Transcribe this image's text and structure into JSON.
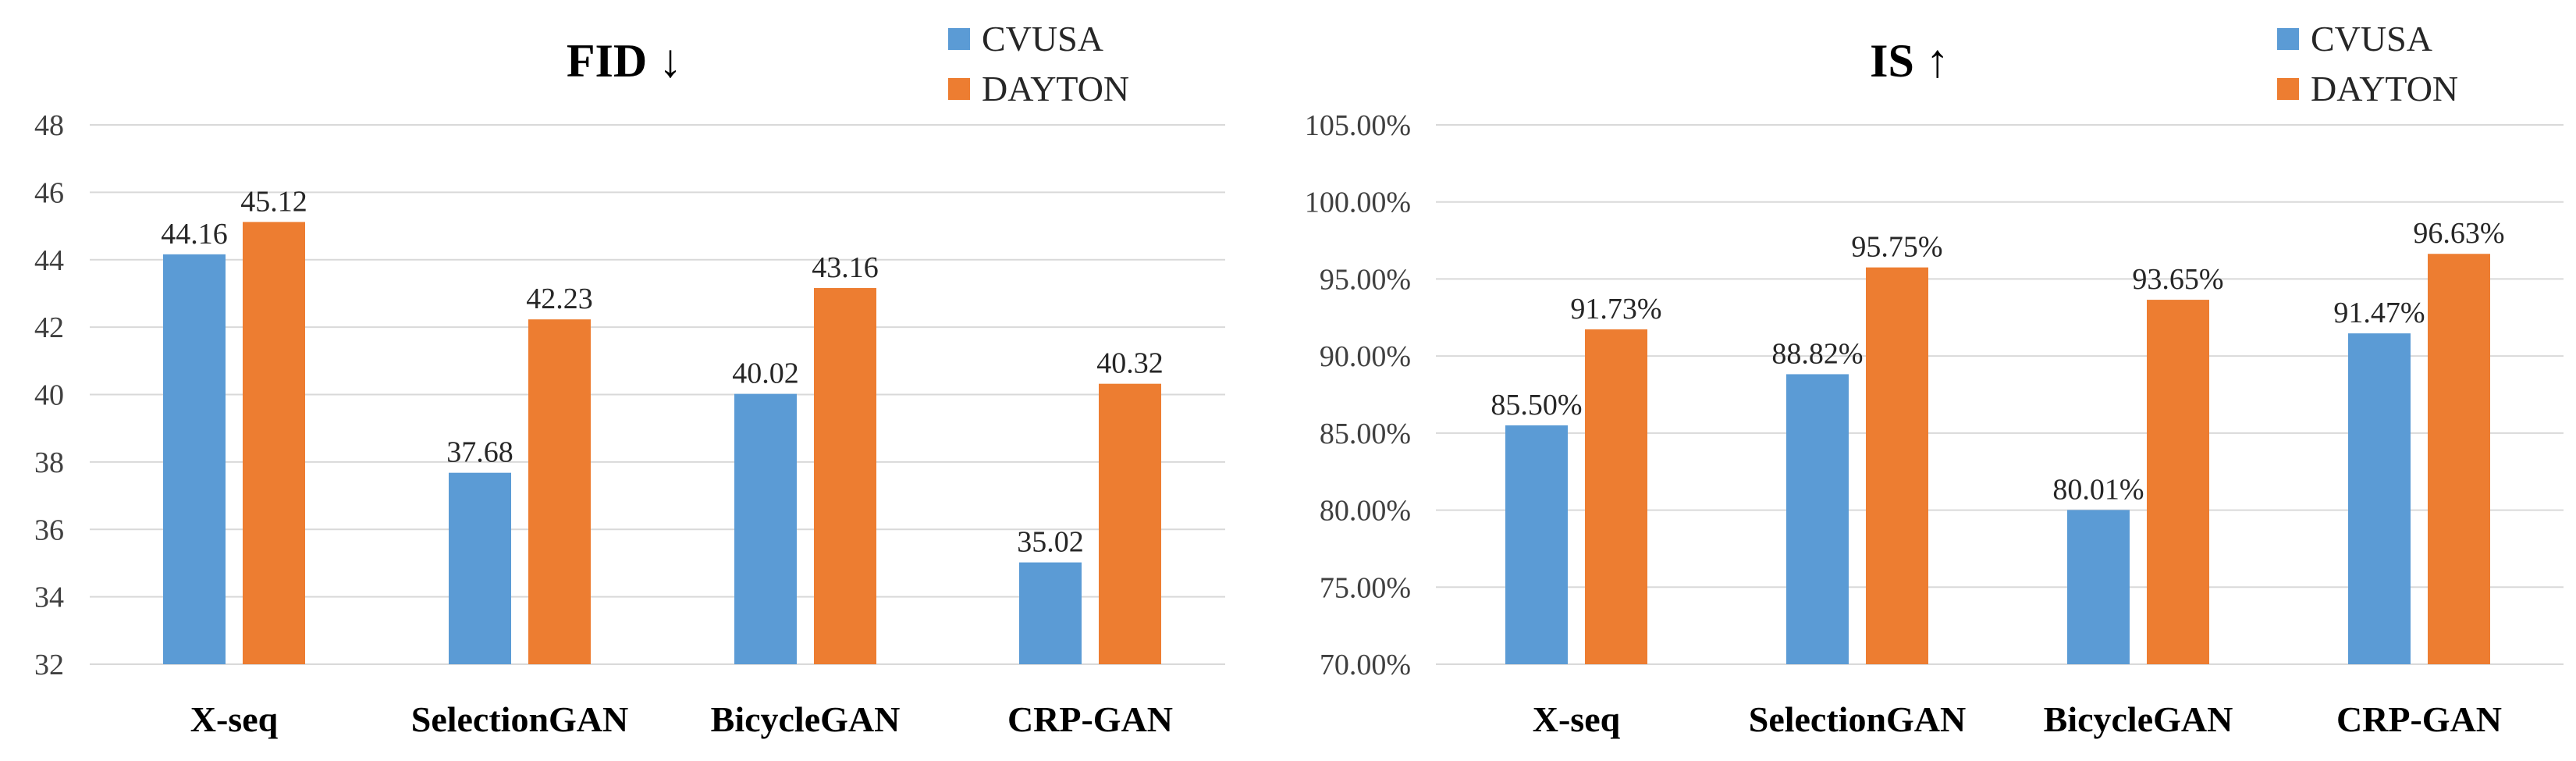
{
  "colors": {
    "CVUSA": "#5b9bd5",
    "DAYTON": "#ed7d31"
  },
  "chart_data": [
    {
      "type": "bar",
      "title": "FID ↓",
      "categories": [
        "X-seq",
        "SelectionGAN",
        "BicycleGAN",
        "CRP-GAN"
      ],
      "series": [
        {
          "name": "CVUSA",
          "values": [
            44.16,
            37.68,
            40.02,
            35.02
          ],
          "labels": [
            "44.16",
            "37.68",
            "40.02",
            "35.02"
          ]
        },
        {
          "name": "DAYTON",
          "values": [
            45.12,
            42.23,
            43.16,
            40.32
          ],
          "labels": [
            "45.12",
            "42.23",
            "43.16",
            "40.32"
          ]
        }
      ],
      "ylim": [
        32,
        48
      ],
      "yticks": [
        32,
        34,
        36,
        38,
        40,
        42,
        44,
        46,
        48
      ],
      "ytick_labels": [
        "32",
        "34",
        "36",
        "38",
        "40",
        "42",
        "44",
        "46",
        "48"
      ],
      "xlabel": "",
      "ylabel": "",
      "grid": true,
      "legend_position": "top-right"
    },
    {
      "type": "bar",
      "title": "IS ↑",
      "categories": [
        "X-seq",
        "SelectionGAN",
        "BicycleGAN",
        "CRP-GAN"
      ],
      "series": [
        {
          "name": "CVUSA",
          "values": [
            85.5,
            88.82,
            80.01,
            91.47
          ],
          "labels": [
            "85.50%",
            "88.82%",
            "80.01%",
            "91.47%"
          ]
        },
        {
          "name": "DAYTON",
          "values": [
            91.73,
            95.75,
            93.65,
            96.63
          ],
          "labels": [
            "91.73%",
            "95.75%",
            "93.65%",
            "96.63%"
          ]
        }
      ],
      "ylim": [
        70,
        105
      ],
      "yticks": [
        70,
        75,
        80,
        85,
        90,
        95,
        100,
        105
      ],
      "ytick_labels": [
        "70.00%",
        "75.00%",
        "80.00%",
        "85.00%",
        "90.00%",
        "95.00%",
        "100.00%",
        "105.00%"
      ],
      "xlabel": "",
      "ylabel": "",
      "grid": true,
      "legend_position": "top-right"
    }
  ]
}
